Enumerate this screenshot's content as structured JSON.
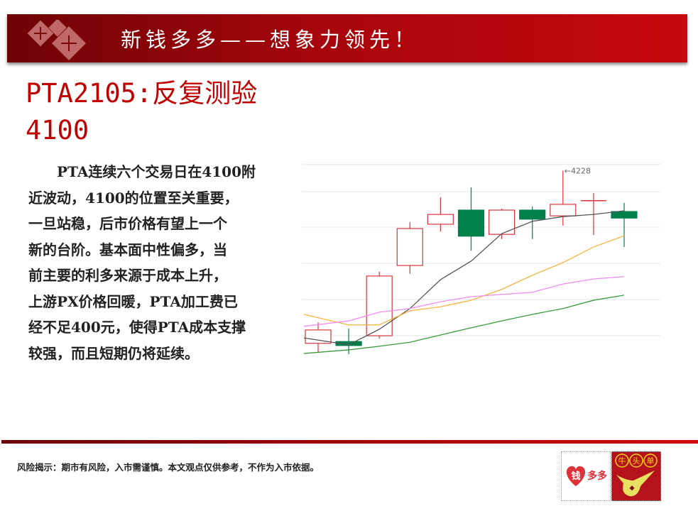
{
  "banner": {
    "title": "新钱多多——想象力领先！"
  },
  "heading": {
    "line1": "PTA2105:反复测验",
    "line2": "4100"
  },
  "body": {
    "lines": [
      "　　PTA连续六个交易日在4100附",
      "近波动，4100的位置至关重要，",
      "一旦站稳，后市价格有望上一个",
      "新的台阶。基本面中性偏多，当",
      "前主要的利多来源于成本上升，",
      "上游PX价格回暖，PTA加工费已",
      "经不足400元，使得PTA成本支撑",
      "较强，而且短期仍将延续。"
    ]
  },
  "footer": {
    "disclaimer": "风险揭示：期市有风险，入市需谨慎。本文观点仅供参考，不作为入市依据。"
  },
  "logos": {
    "left_text": "钱多多",
    "right_text": "牛头单"
  },
  "colors": {
    "brand_red": "#c00000",
    "up": "#d9363e",
    "down": "#00804a",
    "ma5": "#555555",
    "ma10": "#f5b342",
    "ma20": "#f08cf0",
    "ma60": "#3a9a3a"
  },
  "chart_data": {
    "type": "candlestick",
    "ylim": [
      3700,
      4260
    ],
    "grid": true,
    "annotation": {
      "index": 8,
      "text": "←4228"
    },
    "candles": [
      {
        "o": 3751,
        "h": 3809,
        "l": 3725,
        "c": 3788
      },
      {
        "o": 3756,
        "h": 3792,
        "l": 3721,
        "c": 3745
      },
      {
        "o": 3772,
        "h": 3949,
        "l": 3764,
        "c": 3937
      },
      {
        "o": 3966,
        "h": 4086,
        "l": 3943,
        "c": 4068
      },
      {
        "o": 4080,
        "h": 4154,
        "l": 4060,
        "c": 4107
      },
      {
        "o": 4119,
        "h": 4182,
        "l": 4007,
        "c": 4047
      },
      {
        "o": 4052,
        "h": 4123,
        "l": 4039,
        "c": 4119
      },
      {
        "o": 4119,
        "h": 4129,
        "l": 4039,
        "c": 4094
      },
      {
        "o": 4103,
        "h": 4228,
        "l": 4076,
        "c": 4135
      },
      {
        "o": 4145,
        "h": 4166,
        "l": 4050,
        "c": 4145
      },
      {
        "o": 4115,
        "h": 4139,
        "l": 4017,
        "c": 4097
      }
    ],
    "moving_averages": [
      {
        "key": "ma5",
        "values": [
          3766,
          3747,
          3790,
          3847,
          3927,
          3978,
          4054,
          4088,
          4101,
          4107,
          4117
        ]
      },
      {
        "key": "ma10",
        "values": [
          3831,
          3802,
          3802,
          3841,
          3852,
          3870,
          3900,
          3939,
          3974,
          4017,
          4048
        ]
      },
      {
        "key": "ma20",
        "values": [
          3798,
          3813,
          3837,
          3847,
          3866,
          3880,
          3886,
          3892,
          3915,
          3929,
          3935
        ]
      },
      {
        "key": "ma60",
        "values": [
          3723,
          3733,
          3743,
          3754,
          3774,
          3794,
          3813,
          3831,
          3847,
          3870,
          3884
        ]
      }
    ]
  }
}
